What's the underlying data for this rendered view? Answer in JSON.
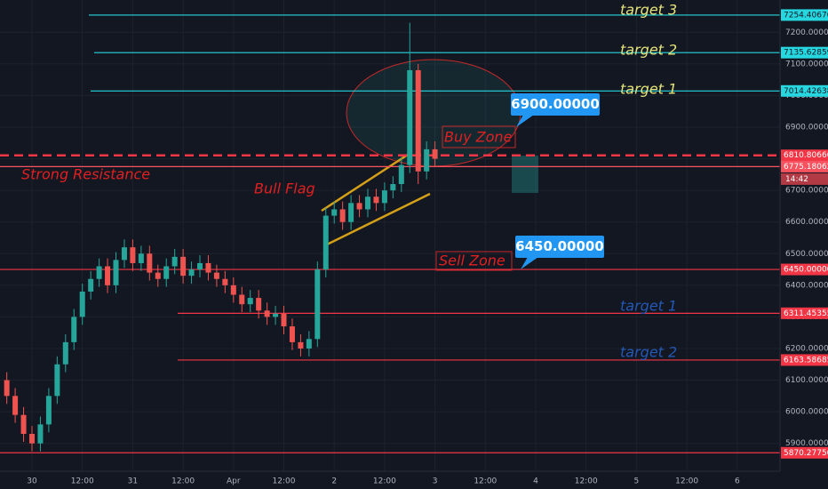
{
  "chart_data": {
    "type": "candlestick",
    "x": [
      -6,
      -4,
      -2,
      0,
      2,
      4,
      6,
      8,
      10,
      12,
      14,
      16,
      18,
      20,
      22,
      24,
      26,
      28,
      30,
      32,
      34,
      36,
      38,
      40,
      42,
      44,
      46,
      48,
      50,
      52,
      54,
      56,
      58,
      60,
      62,
      64,
      66,
      68,
      70,
      72,
      74,
      76,
      78,
      80,
      82,
      84,
      86,
      88,
      90,
      92,
      94,
      96
    ],
    "open": [
      6100,
      6050,
      5990,
      5930,
      5900,
      5960,
      6050,
      6150,
      6220,
      6300,
      6380,
      6420,
      6460,
      6400,
      6480,
      6520,
      6470,
      6500,
      6440,
      6420,
      6460,
      6490,
      6430,
      6450,
      6470,
      6440,
      6420,
      6400,
      6370,
      6340,
      6360,
      6320,
      6300,
      6310,
      6270,
      6220,
      6200,
      6230,
      6450,
      6620,
      6640,
      6600,
      6660,
      6640,
      6680,
      6660,
      6700,
      6720,
      6780,
      7080,
      6760,
      6830
    ],
    "high": [
      6125,
      6075,
      6015,
      5955,
      5985,
      6075,
      6175,
      6245,
      6325,
      6405,
      6445,
      6485,
      6485,
      6505,
      6545,
      6545,
      6525,
      6525,
      6465,
      6485,
      6515,
      6515,
      6475,
      6495,
      6495,
      6465,
      6445,
      6425,
      6395,
      6385,
      6385,
      6345,
      6335,
      6335,
      6295,
      6245,
      6255,
      6475,
      6645,
      6665,
      6665,
      6685,
      6685,
      6705,
      6705,
      6725,
      6745,
      6805,
      7230,
      7100,
      6855,
      6855
    ],
    "low": [
      6025,
      5965,
      5905,
      5875,
      5875,
      5935,
      6025,
      6125,
      6195,
      6275,
      6355,
      6395,
      6375,
      6375,
      6455,
      6445,
      6445,
      6415,
      6395,
      6395,
      6435,
      6405,
      6405,
      6425,
      6415,
      6395,
      6375,
      6345,
      6315,
      6315,
      6295,
      6275,
      6275,
      6245,
      6195,
      6175,
      6175,
      6205,
      6425,
      6595,
      6575,
      6575,
      6615,
      6615,
      6635,
      6635,
      6675,
      6695,
      6755,
      6720,
      6735,
      6775
    ],
    "close": [
      6050,
      5990,
      5930,
      5900,
      5960,
      6050,
      6150,
      6220,
      6300,
      6380,
      6420,
      6460,
      6400,
      6480,
      6520,
      6470,
      6500,
      6440,
      6420,
      6460,
      6490,
      6430,
      6450,
      6470,
      6440,
      6420,
      6400,
      6370,
      6340,
      6360,
      6320,
      6300,
      6310,
      6270,
      6220,
      6200,
      6230,
      6450,
      6620,
      6640,
      6600,
      6660,
      6640,
      6680,
      6660,
      6700,
      6720,
      6780,
      7080,
      6760,
      6830,
      6800
    ],
    "up_color": "#26a69a",
    "down_color": "#ef5350",
    "xlim": [
      -7.62,
      178.2
    ],
    "xticks": [
      {
        "value": 0,
        "label": "30"
      },
      {
        "value": 12,
        "label": "12:00"
      },
      {
        "value": 24,
        "label": "31"
      },
      {
        "value": 36,
        "label": "12:00"
      },
      {
        "value": 48,
        "label": "Apr"
      },
      {
        "value": 60,
        "label": "12:00"
      },
      {
        "value": 72,
        "label": "2"
      },
      {
        "value": 84,
        "label": "12:00"
      },
      {
        "value": 96,
        "label": "3"
      },
      {
        "value": 108,
        "label": "12:00"
      },
      {
        "value": 120,
        "label": "4"
      },
      {
        "value": 132,
        "label": "12:00"
      },
      {
        "value": 144,
        "label": "5"
      },
      {
        "value": 156,
        "label": "12:00"
      },
      {
        "value": 168,
        "label": "6"
      }
    ],
    "ylim": [
      5812,
      7302
    ],
    "yticks": [
      {
        "value": 7200,
        "label": "7200.00000"
      },
      {
        "value": 7100,
        "label": "7100.00000"
      },
      {
        "value": 7000,
        "label": "7000.00000"
      },
      {
        "value": 6900,
        "label": "6900.00000"
      },
      {
        "value": 6800,
        "label": "6800.00000"
      },
      {
        "value": 6700,
        "label": "6700.00000"
      },
      {
        "value": 6600,
        "label": "6600.00000"
      },
      {
        "value": 6500,
        "label": "6500.00000"
      },
      {
        "value": 6400,
        "label": "6400.00000"
      },
      {
        "value": 6300,
        "label": "6300.00000"
      },
      {
        "value": 6200,
        "label": "6200.00000"
      },
      {
        "value": 6100,
        "label": "6100.00000"
      },
      {
        "value": 6000,
        "label": "6000.00000"
      },
      {
        "value": 5900,
        "label": "5900.00000"
      }
    ],
    "grid": true,
    "levels": [
      {
        "value": 7254.40676,
        "label": "7254.40676",
        "color": "#26d7e0",
        "style": "solid"
      },
      {
        "value": 7135.62859,
        "label": "7135.62859",
        "color": "#26d7e0",
        "style": "solid"
      },
      {
        "value": 7014.42638,
        "label": "7014.42638",
        "color": "#26d7e0",
        "style": "solid"
      },
      {
        "value": 6810.80666,
        "label": "6810.80666",
        "color": "#f23645",
        "style": "dashed"
      },
      {
        "value": 6775.18062,
        "label": "6775.18062",
        "color": "#f7525f",
        "style": "solid"
      },
      {
        "value": 6450,
        "label": "6450.00000",
        "color": "#f23645",
        "style": "solid"
      },
      {
        "value": 6311.45355,
        "label": "6311.45355",
        "color": "#f23645",
        "style": "solid"
      },
      {
        "value": 6163.58685,
        "label": "6163.58685",
        "color": "#f23645",
        "style": "solid"
      },
      {
        "value": 5870.2775,
        "label": "5870.27750",
        "color": "#f23645",
        "style": "solid"
      }
    ],
    "callouts": [
      {
        "value": 6900,
        "label": "6900.00000"
      },
      {
        "value": 6450,
        "label": "6450.00000"
      }
    ],
    "countdown": "14:42",
    "annotations": [
      "target 3",
      "target 2",
      "target 1",
      "Strong Resistance",
      "Bull Flag",
      "Buy Zone",
      "Sell Zone",
      "target 1",
      "target 2"
    ]
  }
}
